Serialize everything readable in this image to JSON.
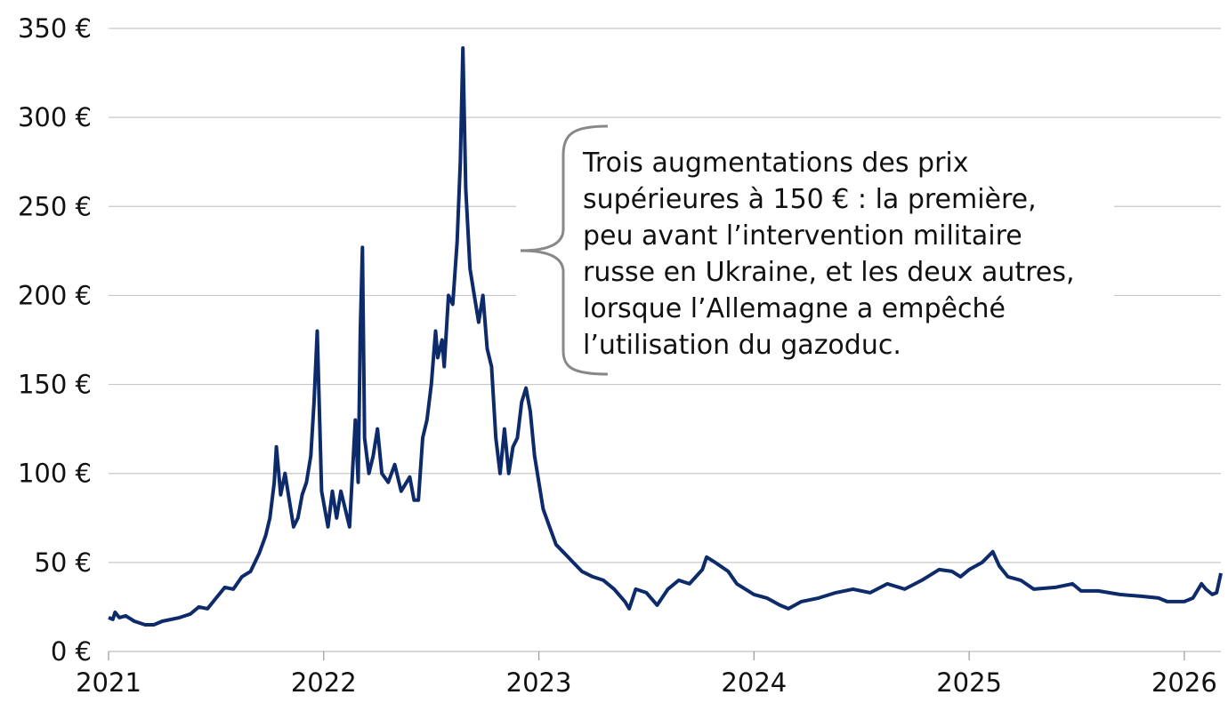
{
  "chart_data": {
    "type": "line",
    "annotation": [
      "Trois augmentations des prix",
      "supérieures à 150 € : la première,",
      "peu avant l’intervention militaire",
      "russe en Ukraine, et les deux autres,",
      "lorsque l’Allemagne a empêché",
      "l’utilisation du gazoduc."
    ],
    "x": [
      2021.0,
      2021.02,
      2021.03,
      2021.05,
      2021.08,
      2021.12,
      2021.17,
      2021.21,
      2021.25,
      2021.33,
      2021.38,
      2021.42,
      2021.46,
      2021.5,
      2021.54,
      2021.58,
      2021.62,
      2021.66,
      2021.7,
      2021.73,
      2021.75,
      2021.77,
      2021.78,
      2021.8,
      2021.82,
      2021.84,
      2021.86,
      2021.88,
      2021.9,
      2021.92,
      2021.94,
      2021.955,
      2021.97,
      2021.99,
      2022.02,
      2022.04,
      2022.06,
      2022.08,
      2022.1,
      2022.12,
      2022.147,
      2022.16,
      2022.17,
      2022.18,
      2022.19,
      2022.21,
      2022.23,
      2022.25,
      2022.27,
      2022.3,
      2022.33,
      2022.36,
      2022.4,
      2022.42,
      2022.44,
      2022.46,
      2022.48,
      2022.5,
      2022.52,
      2022.53,
      2022.55,
      2022.56,
      2022.58,
      2022.6,
      2022.62,
      2022.635,
      2022.647,
      2022.66,
      2022.68,
      2022.7,
      2022.72,
      2022.74,
      2022.76,
      2022.78,
      2022.8,
      2022.82,
      2022.84,
      2022.86,
      2022.88,
      2022.9,
      2022.92,
      2022.94,
      2022.96,
      2022.98,
      2023.02,
      2023.05,
      2023.08,
      2023.12,
      2023.16,
      2023.2,
      2023.25,
      2023.3,
      2023.35,
      2023.4,
      2023.42,
      2023.45,
      2023.5,
      2023.55,
      2023.6,
      2023.65,
      2023.7,
      2023.76,
      2023.78,
      2023.82,
      2023.88,
      2023.92,
      2023.96,
      2024.0,
      2024.06,
      2024.12,
      2024.16,
      2024.22,
      2024.3,
      2024.38,
      2024.46,
      2024.54,
      2024.62,
      2024.7,
      2024.78,
      2024.86,
      2024.92,
      2024.96,
      2025.0,
      2025.06,
      2025.11,
      2025.14,
      2025.18,
      2025.24,
      2025.3,
      2025.4,
      2025.48,
      2025.52,
      2025.6,
      2025.7,
      2025.8,
      2025.88,
      2025.92,
      2026.0,
      2026.04,
      2026.08,
      2026.1,
      2026.13,
      2026.15,
      2026.17
    ],
    "series": [
      {
        "color": "#0d2a6b",
        "values": [
          19,
          18,
          22,
          19,
          20,
          17,
          15,
          15,
          17,
          19,
          21,
          25,
          24,
          30,
          36,
          35,
          42,
          45,
          55,
          65,
          75,
          95,
          115,
          88,
          100,
          85,
          70,
          75,
          88,
          95,
          110,
          140,
          180,
          90,
          70,
          90,
          75,
          90,
          80,
          70,
          130,
          95,
          180,
          227,
          120,
          100,
          110,
          125,
          100,
          95,
          105,
          90,
          98,
          85,
          85,
          120,
          130,
          150,
          180,
          165,
          175,
          160,
          200,
          195,
          230,
          275,
          339,
          260,
          215,
          200,
          185,
          200,
          170,
          160,
          120,
          100,
          125,
          100,
          115,
          120,
          140,
          148,
          135,
          110,
          80,
          70,
          60,
          55,
          50,
          45,
          42,
          40,
          35,
          28,
          24,
          35,
          33,
          26,
          35,
          40,
          38,
          46,
          53,
          50,
          45,
          38,
          35,
          32,
          30,
          26,
          24,
          28,
          30,
          33,
          35,
          33,
          38,
          35,
          40,
          46,
          45,
          42,
          46,
          50,
          56,
          48,
          42,
          40,
          35,
          36,
          38,
          34,
          34,
          32,
          31,
          30,
          28,
          28,
          30,
          38,
          35,
          32,
          33,
          44
        ]
      }
    ],
    "xlim": [
      2021,
      2026.17
    ],
    "xticks": [
      2021,
      2022,
      2023,
      2024,
      2025,
      2026
    ],
    "ylim": [
      0,
      350
    ],
    "yticks": [
      {
        "value": 0,
        "label": "0 €"
      },
      {
        "value": 50,
        "label": "50 €"
      },
      {
        "value": 100,
        "label": "100 €"
      },
      {
        "value": 150,
        "label": "150 €"
      },
      {
        "value": 200,
        "label": "200 €"
      },
      {
        "value": 250,
        "label": "250 €"
      },
      {
        "value": 300,
        "label": "300 €"
      },
      {
        "value": 350,
        "label": "350 €"
      }
    ],
    "grid": true
  }
}
